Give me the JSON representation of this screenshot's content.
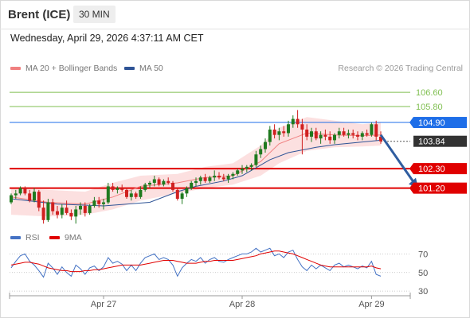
{
  "header": {
    "title": "Brent (ICE)",
    "interval": "30 MIN"
  },
  "timestamp": "Wednesday, April 29, 2026 4:37:11 AM CET",
  "credit": "Research © 2026 Trading Central",
  "legend": {
    "ma20": {
      "label": "MA 20 + Bollinger Bands",
      "color": "#f08080"
    },
    "ma50": {
      "label": "MA 50",
      "color": "#2f5496"
    },
    "rsi": {
      "label": "RSI",
      "color": "#4472c4"
    },
    "ma9": {
      "label": "9MA",
      "color": "#e00000"
    }
  },
  "colors": {
    "up": "#1f7a1f",
    "down": "#d02020",
    "band": "#fbd5d5",
    "arrow": "#2f5da0"
  },
  "chart_data": [
    {
      "type": "candlestick",
      "ylim": [
        98.9,
        107.5
      ],
      "x_tick_labels": [
        "Apr 27",
        "Apr 28",
        "Apr 29"
      ],
      "x_tick_index": [
        20,
        50,
        78
      ],
      "ma50_points": [
        [
          0,
          100.6
        ],
        [
          10,
          100.3
        ],
        [
          20,
          100.2
        ],
        [
          30,
          100.4
        ],
        [
          36,
          101.0
        ],
        [
          40,
          101.3
        ],
        [
          46,
          101.6
        ],
        [
          50,
          101.9
        ],
        [
          56,
          102.8
        ],
        [
          60,
          103.2
        ],
        [
          66,
          103.5
        ],
        [
          70,
          103.65
        ],
        [
          76,
          103.8
        ],
        [
          80,
          103.9
        ]
      ],
      "ma20_points": [
        [
          0,
          100.7
        ],
        [
          8,
          100.4
        ],
        [
          16,
          100.3
        ],
        [
          22,
          100.7
        ],
        [
          28,
          101.3
        ],
        [
          36,
          101.5
        ],
        [
          42,
          101.8
        ],
        [
          48,
          101.9
        ],
        [
          54,
          102.7
        ],
        [
          58,
          103.7
        ],
        [
          64,
          104.3
        ],
        [
          70,
          104.2
        ],
        [
          76,
          104.15
        ],
        [
          80,
          104.2
        ]
      ],
      "bollinger_upper": [
        [
          0,
          101.2
        ],
        [
          8,
          101.1
        ],
        [
          16,
          101.0
        ],
        [
          22,
          101.5
        ],
        [
          28,
          101.9
        ],
        [
          36,
          102.0
        ],
        [
          42,
          102.4
        ],
        [
          48,
          102.6
        ],
        [
          54,
          103.6
        ],
        [
          58,
          104.6
        ],
        [
          64,
          105.2
        ],
        [
          70,
          105.0
        ],
        [
          76,
          104.8
        ],
        [
          80,
          104.9
        ]
      ],
      "bollinger_lower": [
        [
          0,
          99.7
        ],
        [
          8,
          99.6
        ],
        [
          16,
          99.7
        ],
        [
          22,
          100.0
        ],
        [
          28,
          100.5
        ],
        [
          36,
          100.9
        ],
        [
          42,
          101.2
        ],
        [
          48,
          101.4
        ],
        [
          54,
          101.9
        ],
        [
          58,
          102.6
        ],
        [
          64,
          103.3
        ],
        [
          70,
          103.5
        ],
        [
          76,
          103.55
        ],
        [
          80,
          103.6
        ]
      ],
      "levels": [
        {
          "label": "106.60",
          "value": 106.6,
          "color": "#7fbf50",
          "kind": "resistance"
        },
        {
          "label": "105.80",
          "value": 105.8,
          "color": "#7fbf50",
          "kind": "resistance"
        },
        {
          "label": "104.90",
          "value": 104.9,
          "color": "#1e6ee8",
          "kind": "pivot"
        },
        {
          "label": "103.84",
          "value": 103.84,
          "color": "#333333",
          "kind": "last"
        },
        {
          "label": "102.30",
          "value": 102.3,
          "color": "#e00000",
          "kind": "support"
        },
        {
          "label": "101.20",
          "value": 101.2,
          "color": "#e00000",
          "kind": "support"
        }
      ],
      "arrow": {
        "from": [
          80,
          104.2
        ],
        "to": [
          85,
          101.2
        ]
      },
      "candles": [
        [
          100.4,
          100.9,
          100.3,
          100.8
        ],
        [
          100.8,
          101.1,
          100.6,
          100.9
        ],
        [
          100.9,
          101.3,
          100.8,
          101.2
        ],
        [
          101.2,
          101.3,
          100.8,
          100.9
        ],
        [
          100.9,
          101.1,
          100.4,
          100.5
        ],
        [
          100.5,
          101.2,
          100.4,
          101.0
        ],
        [
          101.0,
          101.1,
          99.9,
          100.1
        ],
        [
          100.1,
          100.5,
          99.2,
          99.4
        ],
        [
          99.4,
          100.6,
          99.3,
          100.4
        ],
        [
          100.4,
          100.6,
          99.7,
          99.9
        ],
        [
          99.9,
          100.2,
          99.5,
          99.7
        ],
        [
          99.7,
          100.3,
          99.5,
          100.1
        ],
        [
          100.1,
          100.5,
          99.7,
          99.8
        ],
        [
          99.8,
          100.0,
          99.4,
          99.6
        ],
        [
          99.6,
          100.2,
          99.2,
          100.0
        ],
        [
          100.0,
          100.4,
          99.7,
          100.2
        ],
        [
          100.2,
          100.4,
          99.6,
          99.8
        ],
        [
          99.8,
          100.3,
          99.7,
          100.2
        ],
        [
          100.2,
          100.7,
          100.1,
          100.5
        ],
        [
          100.5,
          100.7,
          100.1,
          100.3
        ],
        [
          100.3,
          100.6,
          100.0,
          100.4
        ],
        [
          100.4,
          101.5,
          100.3,
          101.3
        ],
        [
          101.3,
          101.5,
          101.0,
          101.1
        ],
        [
          101.1,
          101.3,
          100.9,
          101.2
        ],
        [
          101.2,
          101.4,
          101.0,
          101.1
        ],
        [
          101.1,
          101.2,
          100.6,
          100.7
        ],
        [
          100.7,
          101.1,
          100.5,
          100.9
        ],
        [
          100.9,
          101.0,
          100.6,
          100.7
        ],
        [
          100.7,
          101.3,
          100.6,
          101.1
        ],
        [
          101.1,
          101.5,
          101.0,
          101.4
        ],
        [
          101.4,
          101.6,
          101.2,
          101.5
        ],
        [
          101.5,
          101.9,
          101.3,
          101.7
        ],
        [
          101.7,
          101.8,
          101.3,
          101.4
        ],
        [
          101.4,
          101.7,
          101.3,
          101.6
        ],
        [
          101.6,
          101.8,
          101.4,
          101.5
        ],
        [
          101.5,
          101.6,
          101.0,
          101.1
        ],
        [
          101.1,
          101.2,
          100.5,
          100.6
        ],
        [
          100.6,
          101.0,
          100.3,
          100.9
        ],
        [
          100.9,
          101.3,
          100.7,
          101.2
        ],
        [
          101.2,
          101.6,
          101.1,
          101.5
        ],
        [
          101.5,
          101.8,
          101.3,
          101.6
        ],
        [
          101.6,
          101.9,
          101.4,
          101.8
        ],
        [
          101.8,
          102.0,
          101.5,
          101.6
        ],
        [
          101.6,
          101.9,
          101.5,
          101.8
        ],
        [
          101.8,
          102.2,
          101.6,
          101.9
        ],
        [
          101.9,
          102.1,
          101.7,
          101.8
        ],
        [
          101.8,
          102.0,
          101.6,
          101.7
        ],
        [
          101.7,
          102.0,
          101.5,
          101.9
        ],
        [
          101.9,
          102.1,
          101.7,
          102.0
        ],
        [
          102.0,
          102.3,
          101.9,
          102.2
        ],
        [
          102.2,
          102.5,
          102.0,
          102.3
        ],
        [
          102.3,
          102.5,
          102.1,
          102.4
        ],
        [
          102.4,
          102.6,
          102.2,
          102.5
        ],
        [
          102.5,
          103.3,
          102.4,
          103.1
        ],
        [
          103.1,
          103.6,
          102.9,
          103.4
        ],
        [
          103.4,
          104.0,
          103.2,
          103.8
        ],
        [
          103.8,
          104.7,
          103.6,
          104.5
        ],
        [
          104.5,
          104.8,
          104.0,
          104.2
        ],
        [
          104.2,
          104.6,
          103.9,
          104.4
        ],
        [
          104.4,
          104.7,
          104.1,
          104.3
        ],
        [
          104.3,
          105.0,
          104.1,
          104.8
        ],
        [
          104.8,
          105.3,
          104.6,
          105.1
        ],
        [
          105.1,
          105.6,
          104.6,
          104.8
        ],
        [
          104.8,
          105.1,
          103.1,
          104.5
        ],
        [
          104.5,
          104.8,
          103.9,
          104.1
        ],
        [
          104.1,
          104.6,
          103.8,
          104.4
        ],
        [
          104.4,
          104.6,
          103.9,
          104.0
        ],
        [
          104.0,
          104.4,
          103.7,
          104.2
        ],
        [
          104.2,
          104.5,
          103.9,
          104.1
        ],
        [
          104.1,
          104.4,
          103.7,
          103.9
        ],
        [
          103.9,
          104.3,
          103.7,
          104.2
        ],
        [
          104.2,
          104.6,
          104.0,
          104.4
        ],
        [
          104.4,
          104.6,
          104.1,
          104.2
        ],
        [
          104.2,
          104.5,
          104.0,
          104.3
        ],
        [
          104.3,
          104.5,
          104.0,
          104.2
        ],
        [
          104.2,
          104.4,
          103.9,
          104.1
        ],
        [
          104.1,
          104.4,
          103.9,
          104.3
        ],
        [
          104.3,
          104.5,
          104.1,
          104.2
        ],
        [
          104.2,
          104.9,
          104.1,
          104.8
        ],
        [
          104.8,
          105.0,
          103.9,
          104.1
        ],
        [
          104.1,
          104.4,
          103.7,
          103.84
        ]
      ]
    },
    {
      "type": "line",
      "title": "RSI",
      "ylim": [
        25,
        78
      ],
      "y_ticks": [
        70,
        50,
        30
      ],
      "series": [
        {
          "name": "RSI",
          "color": "#4472c4",
          "values": [
            55,
            62,
            68,
            70,
            62,
            58,
            52,
            45,
            60,
            55,
            48,
            56,
            50,
            46,
            58,
            54,
            48,
            55,
            57,
            52,
            56,
            66,
            60,
            62,
            59,
            52,
            58,
            52,
            60,
            66,
            68,
            70,
            64,
            66,
            64,
            58,
            46,
            55,
            60,
            64,
            62,
            66,
            60,
            64,
            66,
            62,
            61,
            64,
            66,
            68,
            70,
            70,
            72,
            76,
            72,
            74,
            76,
            68,
            70,
            66,
            72,
            74,
            64,
            56,
            52,
            58,
            54,
            58,
            55,
            52,
            58,
            60,
            56,
            58,
            56,
            54,
            57,
            55,
            62,
            48,
            46
          ]
        },
        {
          "name": "9MA",
          "color": "#e00000",
          "values": [
            58,
            59,
            60,
            61,
            61,
            60,
            59,
            57,
            55,
            54,
            53,
            52,
            52,
            51,
            51,
            51,
            52,
            52,
            53,
            53,
            54,
            55,
            56,
            57,
            58,
            58,
            58,
            58,
            58,
            59,
            60,
            61,
            62,
            63,
            63,
            63,
            62,
            61,
            60,
            60,
            60,
            61,
            62,
            62,
            63,
            63,
            63,
            63,
            63,
            64,
            65,
            66,
            67,
            68,
            70,
            71,
            72,
            73,
            73,
            72,
            71,
            70,
            68,
            66,
            64,
            62,
            60,
            58,
            57,
            56,
            56,
            56,
            56,
            56,
            56,
            56,
            56,
            56,
            57,
            55,
            54
          ]
        }
      ]
    }
  ]
}
